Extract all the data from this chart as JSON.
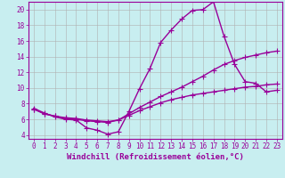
{
  "background_color": "#c8eef0",
  "line_color": "#990099",
  "grid_color": "#b0b0b0",
  "xlabel": "Windchill (Refroidissement éolien,°C)",
  "xlabel_color": "#990099",
  "xlim": [
    -0.5,
    23.5
  ],
  "ylim": [
    3.5,
    21.0
  ],
  "yticks": [
    4,
    6,
    8,
    10,
    12,
    14,
    16,
    18,
    20
  ],
  "xticks": [
    0,
    1,
    2,
    3,
    4,
    5,
    6,
    7,
    8,
    9,
    10,
    11,
    12,
    13,
    14,
    15,
    16,
    17,
    18,
    19,
    20,
    21,
    22,
    23
  ],
  "line1_x": [
    0,
    1,
    2,
    3,
    4,
    5,
    6,
    7,
    8,
    9,
    10,
    11,
    12,
    13,
    14,
    15,
    16,
    17,
    18,
    19,
    20,
    21,
    22,
    23
  ],
  "line1_y": [
    7.4,
    6.8,
    6.3,
    6.0,
    5.9,
    4.9,
    4.6,
    4.1,
    4.4,
    7.0,
    9.9,
    12.5,
    15.8,
    17.4,
    18.8,
    19.9,
    20.0,
    21.0,
    16.6,
    13.0,
    10.8,
    10.6,
    9.5,
    9.7
  ],
  "line2_x": [
    0,
    1,
    2,
    3,
    4,
    5,
    6,
    7,
    8,
    9,
    10,
    11,
    12,
    13,
    14,
    15,
    16,
    17,
    18,
    19,
    20,
    21,
    22,
    23
  ],
  "line2_y": [
    7.3,
    6.7,
    6.4,
    6.1,
    6.0,
    5.8,
    5.7,
    5.6,
    5.9,
    6.7,
    7.5,
    8.2,
    8.9,
    9.5,
    10.1,
    10.8,
    11.5,
    12.3,
    13.0,
    13.5,
    13.9,
    14.2,
    14.5,
    14.7
  ],
  "line3_x": [
    0,
    1,
    2,
    3,
    4,
    5,
    6,
    7,
    8,
    9,
    10,
    11,
    12,
    13,
    14,
    15,
    16,
    17,
    18,
    19,
    20,
    21,
    22,
    23
  ],
  "line3_y": [
    7.3,
    6.7,
    6.4,
    6.2,
    6.1,
    5.9,
    5.8,
    5.7,
    5.9,
    6.5,
    7.1,
    7.6,
    8.1,
    8.5,
    8.8,
    9.1,
    9.3,
    9.5,
    9.7,
    9.9,
    10.1,
    10.2,
    10.4,
    10.5
  ],
  "marker": "+",
  "marker_size": 4,
  "line_width": 1.0,
  "tick_fontsize": 5.5,
  "xlabel_fontsize": 6.5
}
